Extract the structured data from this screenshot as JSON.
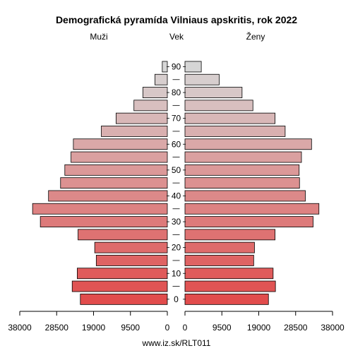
{
  "chart_data": {
    "type": "bar",
    "title": "Demografická pyramída Vilniaus apskritis, rok 2022",
    "left_label": "Muži",
    "center_label": "Vek",
    "right_label": "Ženy",
    "footer": "www.iz.sk/RLT011",
    "age_groups": [
      "0-4",
      "5-9",
      "10-14",
      "15-19",
      "20-24",
      "25-29",
      "30-34",
      "35-39",
      "40-44",
      "45-49",
      "50-54",
      "55-59",
      "60-64",
      "65-69",
      "70-74",
      "75-79",
      "80-84",
      "85-89",
      "90+"
    ],
    "age_tick_labels": [
      "0",
      "10",
      "20",
      "30",
      "40",
      "50",
      "60",
      "70",
      "80",
      "90"
    ],
    "value_tick_labels_left": [
      "38000",
      "28500",
      "19000",
      "9500",
      "0"
    ],
    "value_tick_labels_right": [
      "0",
      "9500",
      "19000",
      "28500",
      "38000"
    ],
    "xlim": [
      0,
      38000
    ],
    "series": [
      {
        "name": "Muži",
        "values": [
          22400,
          24500,
          23200,
          18300,
          18700,
          23000,
          32700,
          34700,
          30600,
          27500,
          26400,
          24800,
          24200,
          17000,
          13200,
          8600,
          6300,
          3200,
          1300
        ]
      },
      {
        "name": "Ženy",
        "values": [
          21500,
          23300,
          22700,
          17700,
          17900,
          23200,
          33000,
          34500,
          31000,
          29500,
          29400,
          30000,
          32600,
          25800,
          23200,
          17500,
          14700,
          8800,
          4200
        ]
      }
    ],
    "colors": {
      "young": "#e14c4c",
      "old": "#d6d6d6",
      "stroke": "#000000"
    }
  }
}
